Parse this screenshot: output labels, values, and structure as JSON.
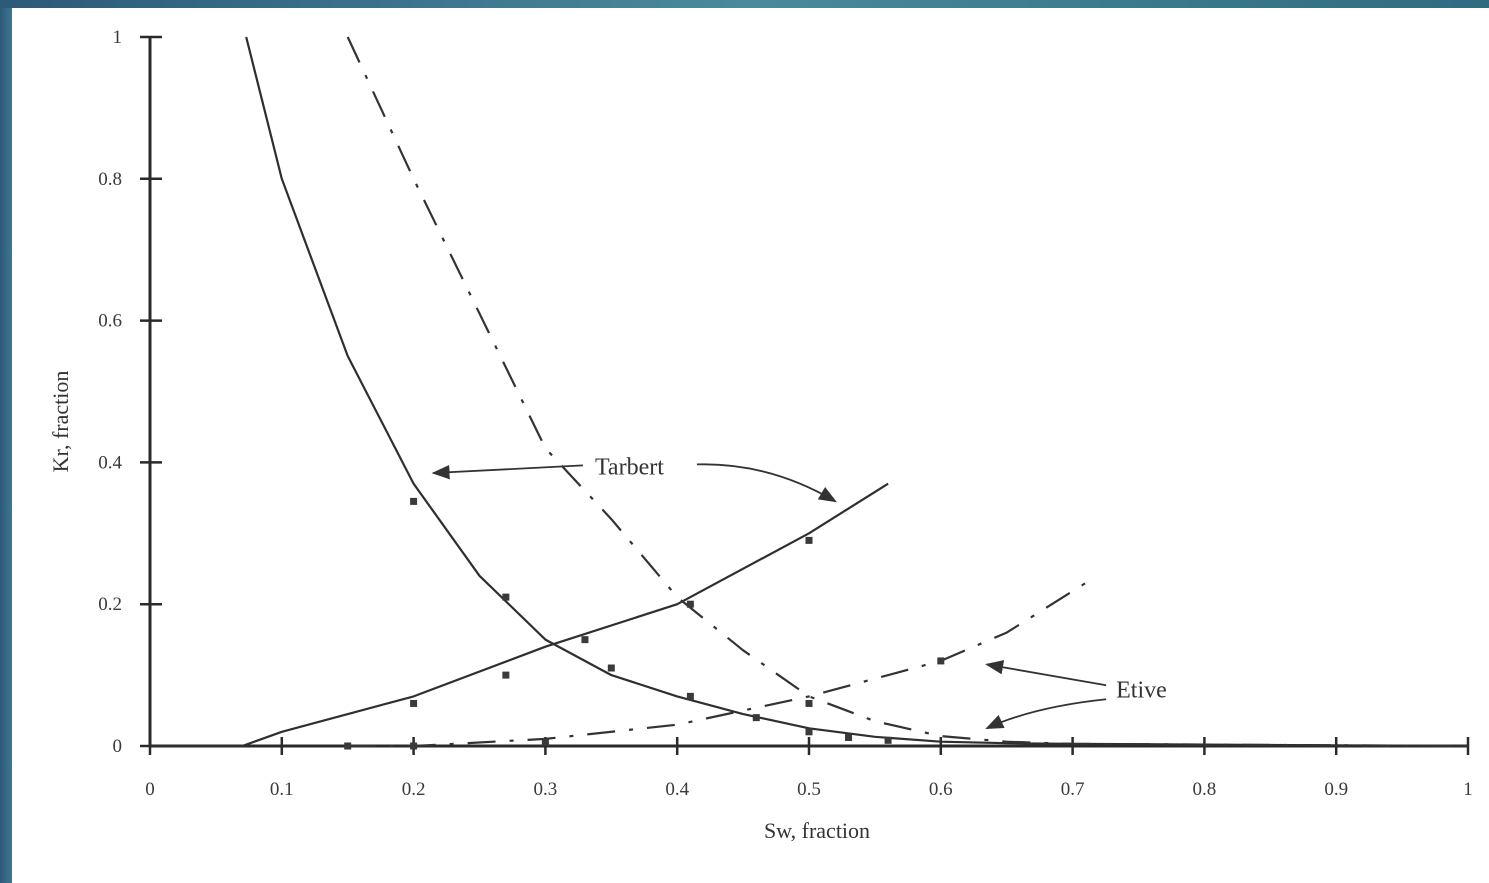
{
  "chart_data": {
    "type": "line",
    "title": "",
    "xlabel": "Sw, fraction",
    "ylabel": "Kr, fraction",
    "xlim": [
      0,
      1
    ],
    "ylim": [
      0,
      1
    ],
    "x_ticks": [
      "0",
      "0.1",
      "0.2",
      "0.3",
      "0.4",
      "0.5",
      "0.6",
      "0.7",
      "0.8",
      "0.9",
      "1"
    ],
    "y_ticks": [
      "0",
      "0.2",
      "0.4",
      "0.6",
      "0.8",
      "1"
    ],
    "grid": false,
    "series": [
      {
        "group": "Tarbert",
        "style": "solid",
        "color": "#2f2f2f",
        "x": [
          0.073,
          0.1,
          0.15,
          0.2,
          0.25,
          0.3,
          0.35,
          0.4,
          0.45,
          0.5,
          0.55,
          0.6,
          0.65,
          0.7,
          0.8,
          0.9,
          1.0
        ],
        "y": [
          1.0,
          0.8,
          0.55,
          0.37,
          0.24,
          0.15,
          0.1,
          0.07,
          0.045,
          0.025,
          0.013,
          0.006,
          0.004,
          0.003,
          0.002,
          0.001,
          0.0
        ]
      },
      {
        "group": "Tarbert",
        "style": "solid",
        "color": "#2f2f2f",
        "x": [
          0.0,
          0.07,
          0.1,
          0.2,
          0.3,
          0.4,
          0.5,
          0.56
        ],
        "y": [
          0.0,
          0.0,
          0.02,
          0.07,
          0.14,
          0.2,
          0.3,
          0.37
        ]
      },
      {
        "group": "Etive",
        "style": "dashed",
        "color": "#333333",
        "x": [
          0.15,
          0.2,
          0.3,
          0.35,
          0.4,
          0.45,
          0.5,
          0.55,
          0.6,
          0.65,
          0.7,
          0.8,
          0.9,
          1.0
        ],
        "y": [
          1.0,
          0.8,
          0.42,
          0.32,
          0.21,
          0.135,
          0.07,
          0.035,
          0.014,
          0.006,
          0.003,
          0.002,
          0.001,
          0.0
        ]
      },
      {
        "group": "Etive",
        "style": "dashed",
        "color": "#333333",
        "x": [
          0.15,
          0.2,
          0.3,
          0.4,
          0.5,
          0.6,
          0.65,
          0.71
        ],
        "y": [
          0.0,
          0.0,
          0.01,
          0.03,
          0.07,
          0.12,
          0.16,
          0.23
        ]
      }
    ],
    "annotations": [
      {
        "text": "Tarbert",
        "x": 0.33,
        "y": 0.4
      },
      {
        "text": "Etive",
        "x": 0.73,
        "y": 0.08
      }
    ],
    "markers": [
      {
        "series": 0,
        "x": [
          0.2,
          0.27,
          0.35,
          0.41,
          0.46,
          0.5,
          0.53,
          0.56
        ],
        "y": [
          0.345,
          0.21,
          0.11,
          0.07,
          0.04,
          0.02,
          0.012,
          0.008
        ]
      },
      {
        "series": 1,
        "x": [
          0.2,
          0.27,
          0.33,
          0.41,
          0.5
        ],
        "y": [
          0.06,
          0.1,
          0.15,
          0.2,
          0.29
        ]
      },
      {
        "series": 3,
        "x": [
          0.15,
          0.2,
          0.3,
          0.5,
          0.6
        ],
        "y": [
          0.0,
          0.0,
          0.005,
          0.06,
          0.12
        ]
      }
    ]
  }
}
